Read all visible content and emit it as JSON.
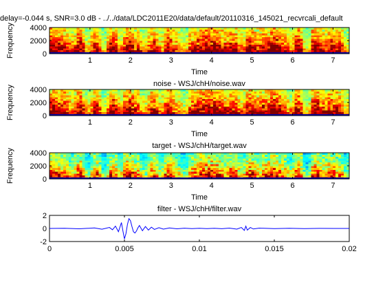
{
  "chart_data": [
    {
      "type": "heatmap",
      "title": "delay=-0.044 s, SNR=3.0 dB - ../../data/LDC2011E20/data/default/20110316_145021_recvrcali_default",
      "xlabel": "Time",
      "ylabel": "Frequency",
      "xlim": [
        0.0,
        7.4
      ],
      "ylim": [
        0,
        4000
      ],
      "xticks": [
        1,
        2,
        3,
        4,
        5,
        6,
        7
      ],
      "yticks": [
        0,
        2000,
        4000
      ],
      "noise_floor": 0.33,
      "energy_envelope": [
        {
          "t": 0.15,
          "level": 0.85
        },
        {
          "t": 0.35,
          "level": 0.8
        },
        {
          "t": 0.55,
          "level": 0.6
        },
        {
          "t": 0.75,
          "level": 0.85
        },
        {
          "t": 0.95,
          "level": 0.5
        },
        {
          "t": 1.15,
          "level": 0.8
        },
        {
          "t": 1.35,
          "level": 0.4
        },
        {
          "t": 1.55,
          "level": 0.85
        },
        {
          "t": 1.75,
          "level": 0.6
        },
        {
          "t": 1.95,
          "level": 0.9
        },
        {
          "t": 2.15,
          "level": 0.7
        },
        {
          "t": 2.35,
          "level": 0.5
        },
        {
          "t": 2.55,
          "level": 0.8
        },
        {
          "t": 2.75,
          "level": 0.55
        },
        {
          "t": 2.95,
          "level": 0.85
        },
        {
          "t": 3.15,
          "level": 0.6
        },
        {
          "t": 3.35,
          "level": 0.45
        },
        {
          "t": 3.55,
          "level": 0.75
        },
        {
          "t": 3.75,
          "level": 0.85
        },
        {
          "t": 3.95,
          "level": 0.9
        },
        {
          "t": 4.15,
          "level": 0.85
        },
        {
          "t": 4.35,
          "level": 0.7
        },
        {
          "t": 4.55,
          "level": 0.8
        },
        {
          "t": 4.75,
          "level": 0.6
        },
        {
          "t": 4.95,
          "level": 0.85
        },
        {
          "t": 5.15,
          "level": 0.7
        },
        {
          "t": 5.35,
          "level": 0.8
        },
        {
          "t": 5.55,
          "level": 0.9
        },
        {
          "t": 5.75,
          "level": 0.75
        },
        {
          "t": 5.95,
          "level": 0.55
        },
        {
          "t": 6.15,
          "level": 0.85
        },
        {
          "t": 6.35,
          "level": 0.4
        },
        {
          "t": 6.55,
          "level": 0.85
        },
        {
          "t": 6.75,
          "level": 0.7
        },
        {
          "t": 6.95,
          "level": 0.8
        },
        {
          "t": 7.15,
          "level": 0.75
        },
        {
          "t": 7.35,
          "level": 0.5
        }
      ]
    },
    {
      "type": "heatmap",
      "title": "noise - WSJ/chH/noise.wav",
      "xlabel": "Time",
      "ylabel": "Frequency",
      "xlim": [
        0.0,
        7.4
      ],
      "ylim": [
        0,
        4000
      ],
      "xticks": [
        1,
        2,
        3,
        4,
        5,
        6,
        7
      ],
      "yticks": [
        0,
        2000,
        4000
      ],
      "noise_floor": 0.33,
      "energy_envelope": [
        {
          "t": 0.15,
          "level": 0.85
        },
        {
          "t": 0.35,
          "level": 0.8
        },
        {
          "t": 0.55,
          "level": 0.6
        },
        {
          "t": 0.75,
          "level": 0.85
        },
        {
          "t": 0.95,
          "level": 0.5
        },
        {
          "t": 1.15,
          "level": 0.8
        },
        {
          "t": 1.35,
          "level": 0.4
        },
        {
          "t": 1.55,
          "level": 0.85
        },
        {
          "t": 1.75,
          "level": 0.6
        },
        {
          "t": 1.95,
          "level": 0.9
        },
        {
          "t": 2.15,
          "level": 0.7
        },
        {
          "t": 2.35,
          "level": 0.5
        },
        {
          "t": 2.55,
          "level": 0.8
        },
        {
          "t": 2.75,
          "level": 0.55
        },
        {
          "t": 2.95,
          "level": 0.85
        },
        {
          "t": 3.15,
          "level": 0.6
        },
        {
          "t": 3.35,
          "level": 0.45
        },
        {
          "t": 3.55,
          "level": 0.75
        },
        {
          "t": 3.75,
          "level": 0.85
        },
        {
          "t": 3.95,
          "level": 0.9
        },
        {
          "t": 4.15,
          "level": 0.85
        },
        {
          "t": 4.35,
          "level": 0.7
        },
        {
          "t": 4.55,
          "level": 0.8
        },
        {
          "t": 4.75,
          "level": 0.6
        },
        {
          "t": 4.95,
          "level": 0.85
        },
        {
          "t": 5.15,
          "level": 0.7
        },
        {
          "t": 5.35,
          "level": 0.8
        },
        {
          "t": 5.55,
          "level": 0.9
        },
        {
          "t": 5.75,
          "level": 0.75
        },
        {
          "t": 5.95,
          "level": 0.55
        },
        {
          "t": 6.15,
          "level": 0.85
        },
        {
          "t": 6.35,
          "level": 0.4
        },
        {
          "t": 6.55,
          "level": 0.85
        },
        {
          "t": 6.75,
          "level": 0.7
        },
        {
          "t": 6.95,
          "level": 0.8
        },
        {
          "t": 7.15,
          "level": 0.75
        },
        {
          "t": 7.35,
          "level": 0.5
        }
      ]
    },
    {
      "type": "heatmap",
      "title": "target - WSJ/chH/target.wav",
      "xlabel": "Time",
      "ylabel": "Frequency",
      "xlim": [
        0.0,
        7.4
      ],
      "ylim": [
        0,
        4000
      ],
      "xticks": [
        1,
        2,
        3,
        4,
        5,
        6,
        7
      ],
      "yticks": [
        0,
        2000,
        4000
      ],
      "noise_floor": 0.18,
      "energy_envelope": [
        {
          "t": 0.15,
          "level": 0.85
        },
        {
          "t": 0.35,
          "level": 0.8
        },
        {
          "t": 0.55,
          "level": 0.6
        },
        {
          "t": 0.75,
          "level": 0.85
        },
        {
          "t": 0.95,
          "level": 0.5
        },
        {
          "t": 1.15,
          "level": 0.8
        },
        {
          "t": 1.35,
          "level": 0.4
        },
        {
          "t": 1.55,
          "level": 0.85
        },
        {
          "t": 1.75,
          "level": 0.6
        },
        {
          "t": 1.95,
          "level": 0.9
        },
        {
          "t": 2.15,
          "level": 0.7
        },
        {
          "t": 2.35,
          "level": 0.5
        },
        {
          "t": 2.55,
          "level": 0.8
        },
        {
          "t": 2.75,
          "level": 0.55
        },
        {
          "t": 2.95,
          "level": 0.85
        },
        {
          "t": 3.15,
          "level": 0.6
        },
        {
          "t": 3.35,
          "level": 0.45
        },
        {
          "t": 3.55,
          "level": 0.75
        },
        {
          "t": 3.75,
          "level": 0.85
        },
        {
          "t": 3.95,
          "level": 0.9
        },
        {
          "t": 4.15,
          "level": 0.85
        },
        {
          "t": 4.35,
          "level": 0.7
        },
        {
          "t": 4.55,
          "level": 0.8
        },
        {
          "t": 4.75,
          "level": 0.6
        },
        {
          "t": 4.95,
          "level": 0.85
        },
        {
          "t": 5.15,
          "level": 0.7
        },
        {
          "t": 5.35,
          "level": 0.8
        },
        {
          "t": 5.55,
          "level": 0.9
        },
        {
          "t": 5.75,
          "level": 0.75
        },
        {
          "t": 5.95,
          "level": 0.55
        },
        {
          "t": 6.15,
          "level": 0.85
        },
        {
          "t": 6.35,
          "level": 0.4
        },
        {
          "t": 6.55,
          "level": 0.85
        },
        {
          "t": 6.75,
          "level": 0.7
        },
        {
          "t": 6.95,
          "level": 0.8
        },
        {
          "t": 7.15,
          "level": 0.75
        },
        {
          "t": 7.35,
          "level": 0.5
        }
      ]
    },
    {
      "type": "line",
      "title": "filter - WSJ/chH/filter.wav",
      "xlabel": "",
      "ylabel": "",
      "xlim": [
        0,
        0.02
      ],
      "ylim": [
        -2,
        2
      ],
      "xticks": [
        0,
        0.005,
        0.01,
        0.015,
        0.02
      ],
      "xtick_labels": [
        "0",
        "0.005",
        "0.01",
        "0.015",
        "0.02"
      ],
      "yticks": [
        -2,
        0,
        2
      ],
      "line_color": "#0000ff",
      "x": [
        0,
        0.001,
        0.002,
        0.003,
        0.0035,
        0.004,
        0.0042,
        0.0044,
        0.0046,
        0.0048,
        0.0049,
        0.005,
        0.0051,
        0.0052,
        0.0053,
        0.0054,
        0.0055,
        0.0056,
        0.0057,
        0.0058,
        0.0059,
        0.006,
        0.0062,
        0.0064,
        0.0066,
        0.0068,
        0.007,
        0.0073,
        0.0076,
        0.008,
        0.0085,
        0.009,
        0.0095,
        0.01,
        0.0105,
        0.011,
        0.0115,
        0.012,
        0.0125,
        0.0128,
        0.013,
        0.0131,
        0.0132,
        0.0134,
        0.0136,
        0.014,
        0.015,
        0.016,
        0.017,
        0.018,
        0.019,
        0.02
      ],
      "y": [
        0,
        0.03,
        -0.05,
        0.08,
        -0.12,
        0.15,
        -0.2,
        0.35,
        -0.5,
        0.9,
        -0.4,
        -1.6,
        -0.8,
        0.6,
        1.5,
        1.2,
        0.3,
        -0.5,
        -0.7,
        -0.4,
        0.1,
        0.45,
        -0.35,
        0.3,
        -0.25,
        0.2,
        -0.15,
        0.12,
        -0.1,
        0.08,
        -0.05,
        0.04,
        -0.03,
        0.02,
        -0.02,
        0.03,
        -0.04,
        0.05,
        -0.1,
        0.15,
        -0.3,
        0.35,
        -0.25,
        0.15,
        -0.08,
        0.05,
        -0.03,
        0.02,
        -0.02,
        0.01,
        0,
        0
      ]
    }
  ]
}
